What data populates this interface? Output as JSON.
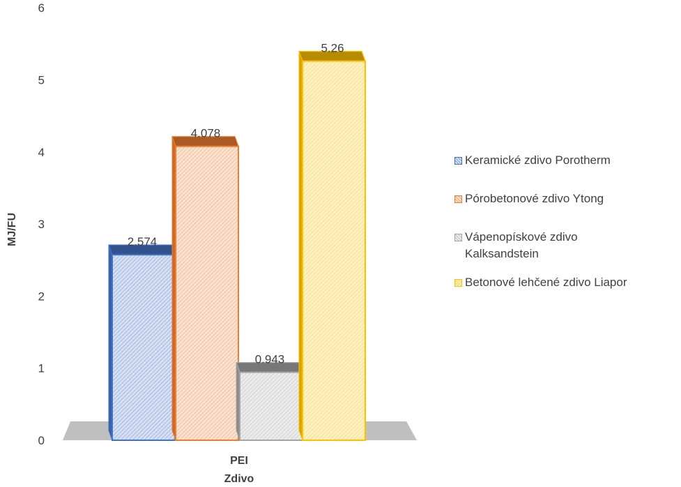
{
  "chart_data": {
    "type": "bar",
    "categories": [
      "PEI"
    ],
    "xlabel": "Zdivo",
    "ylabel": "MJ/FU",
    "ylim": [
      0,
      6
    ],
    "yticks": [
      0,
      1,
      2,
      3,
      4,
      5,
      6
    ],
    "grid": false,
    "legend_position": "right",
    "series": [
      {
        "name": "Keramické zdivo Porotherm",
        "values": [
          2.574
        ],
        "label": "2.574",
        "color": "#4472C4"
      },
      {
        "name": "Pórobetonové zdivo Ytong",
        "values": [
          4.078
        ],
        "label": "4.078",
        "color": "#ED7D31"
      },
      {
        "name": "Vápenopískové zdivo Kalksandstein",
        "values": [
          0.943
        ],
        "label": "0.943",
        "color": "#A5A5A5"
      },
      {
        "name": "Betonové lehčené zdivo Liapor",
        "values": [
          5.26
        ],
        "label": "5.26",
        "color": "#FFC000"
      }
    ]
  },
  "legend": {
    "items": [
      {
        "lines": [
          "Keramické zdivo Porotherm"
        ]
      },
      {
        "lines": [
          "Pórobetonové zdivo Ytong"
        ]
      },
      {
        "lines": [
          "Vápenopískové zdivo",
          "Kalksandstein"
        ]
      },
      {
        "lines": [
          "Betonové lehčené zdivo Liapor"
        ]
      }
    ]
  }
}
